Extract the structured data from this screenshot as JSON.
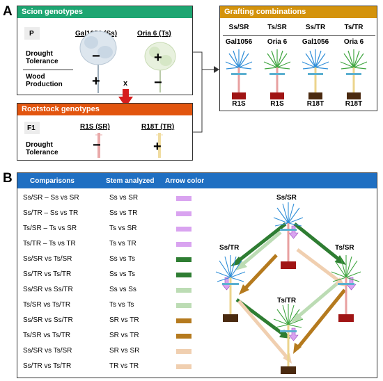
{
  "panel_a": {
    "letter": "A",
    "scion": {
      "title": "Scion genotypes",
      "generation": "P",
      "genotype1": "Gal1056 (Ss)",
      "genotype2": "Oria 6 (Ts)",
      "trait1": "Drought Tolerance",
      "trait2": "Wood Production",
      "g1_trait1": "−",
      "g1_trait2": "+",
      "g2_trait1": "+",
      "g2_trait2": "−"
    },
    "cross_symbol": "x",
    "rootstock": {
      "title": "Rootstock genotypes",
      "generation": "F1",
      "genotype1": "R1S (SR)",
      "genotype2": "R18T (TR)",
      "trait1": "Drought Tolerance",
      "g1_trait1": "−",
      "g2_trait1": "+"
    },
    "grafting": {
      "title": "Grafting combinations",
      "combos": [
        {
          "code": "Ss/SR",
          "scion": "Gal1056",
          "rootstock": "R1S"
        },
        {
          "code": "Ts/SR",
          "scion": "Oria 6",
          "rootstock": "R1S"
        },
        {
          "code": "Ss/TR",
          "scion": "Gal1056",
          "rootstock": "R18T"
        },
        {
          "code": "Ts/TR",
          "scion": "Oria 6",
          "rootstock": "R18T"
        }
      ]
    }
  },
  "panel_b": {
    "letter": "B",
    "headers": {
      "comparisons": "Comparisons",
      "stem": "Stem analyzed",
      "arrow": "Arrow color"
    },
    "rows": [
      {
        "comparison": "Ss/SR – Ss vs SR",
        "stem": "Ss vs SR",
        "color": "#d9a3f0"
      },
      {
        "comparison": "Ss/TR – Ss vs TR",
        "stem": "Ss vs TR",
        "color": "#d9a3f0"
      },
      {
        "comparison": "Ts/SR – Ts vs SR",
        "stem": "Ts vs SR",
        "color": "#d9a3f0"
      },
      {
        "comparison": "Ts/TR – Ts vs TR",
        "stem": "Ts vs TR",
        "color": "#d9a3f0"
      },
      {
        "comparison": "Ss/SR vs Ts/SR",
        "stem": "Ss vs Ts",
        "color": "#2e7d32"
      },
      {
        "comparison": "Ss/TR vs Ts/TR",
        "stem": "Ss vs Ts",
        "color": "#2e7d32"
      },
      {
        "comparison": "Ss/SR vs Ss/TR",
        "stem": "Ss vs Ss",
        "color": "#bcdcb4"
      },
      {
        "comparison": "Ts/SR vs Ts/TR",
        "stem": "Ts vs Ts",
        "color": "#bcdcb4"
      },
      {
        "comparison": "Ss/SR vs Ss/TR",
        "stem": "SR vs TR",
        "color": "#b57a1e"
      },
      {
        "comparison": "Ts/SR vs Ts/TR",
        "stem": "SR vs TR",
        "color": "#b57a1e"
      },
      {
        "comparison": "Ss/SR vs Ts/SR",
        "stem": "SR vs SR",
        "color": "#f0cfb0"
      },
      {
        "comparison": "Ss/TR vs Ts/TR",
        "stem": "TR vs TR",
        "color": "#f0cfb0"
      }
    ],
    "diagram": {
      "top": "Ss/SR",
      "left": "Ss/TR",
      "right": "Ts/SR",
      "bottom": "Ts/TR"
    },
    "colors": {
      "scion_header": "#1ea672",
      "rootstock_header": "#e2550f",
      "grafting_header": "#d4930c",
      "panel_b_header": "#1f6fc2",
      "cross_arrow": "#d61e1e"
    }
  }
}
